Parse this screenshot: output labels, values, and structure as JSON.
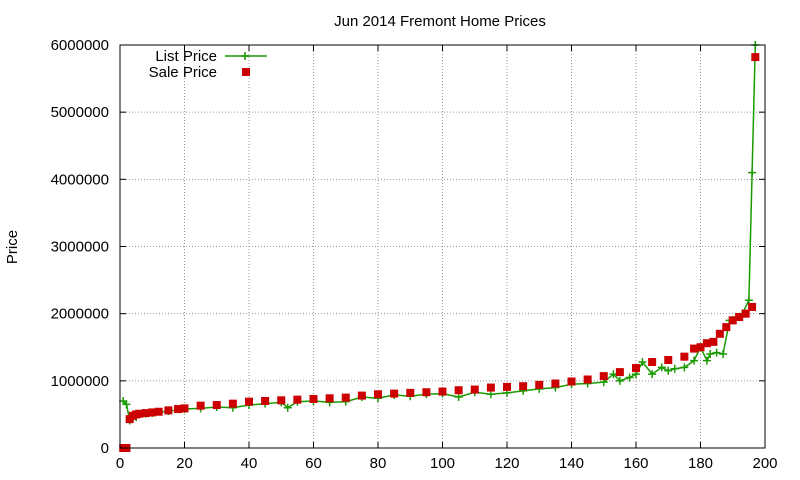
{
  "chart_data": {
    "type": "scatter",
    "title": "Jun 2014 Fremont Home Prices",
    "xlabel": "",
    "ylabel": "Price",
    "xlim": [
      0,
      200
    ],
    "ylim": [
      0,
      6000000
    ],
    "xticks": [
      0,
      20,
      40,
      60,
      80,
      100,
      120,
      140,
      160,
      180,
      200
    ],
    "yticks": [
      0,
      1000000,
      2000000,
      3000000,
      4000000,
      5000000,
      6000000
    ],
    "xtick_labels": [
      "0",
      "20",
      "40",
      "60",
      "80",
      "100",
      "120",
      "140",
      "160",
      "180",
      "200"
    ],
    "ytick_labels": [
      "0",
      "1000000",
      "2000000",
      "3000000",
      "4000000",
      "5000000",
      "6000000"
    ],
    "grid": true,
    "legend_position": "top-left",
    "series": [
      {
        "name": "List Price",
        "style": "lines+crosses",
        "color": "#1a9a00",
        "x": [
          1,
          2,
          3,
          5,
          8,
          10,
          15,
          20,
          25,
          30,
          35,
          40,
          45,
          50,
          52,
          55,
          60,
          65,
          70,
          75,
          80,
          85,
          90,
          95,
          100,
          105,
          110,
          115,
          120,
          125,
          130,
          135,
          140,
          145,
          150,
          153,
          155,
          158,
          160,
          162,
          165,
          168,
          170,
          172,
          175,
          178,
          180,
          182,
          183,
          185,
          187,
          189,
          191,
          193,
          195,
          196,
          197
        ],
        "values": [
          700000,
          650000,
          410000,
          460000,
          510000,
          520000,
          550000,
          580000,
          590000,
          610000,
          600000,
          640000,
          660000,
          680000,
          600000,
          690000,
          700000,
          680000,
          690000,
          760000,
          740000,
          790000,
          770000,
          800000,
          810000,
          760000,
          830000,
          800000,
          820000,
          850000,
          880000,
          900000,
          950000,
          960000,
          980000,
          1100000,
          1000000,
          1050000,
          1100000,
          1280000,
          1100000,
          1200000,
          1150000,
          1180000,
          1200000,
          1300000,
          1500000,
          1300000,
          1400000,
          1420000,
          1400000,
          1900000,
          1950000,
          2000000,
          2200000,
          4100000,
          6000000
        ]
      },
      {
        "name": "Sale Price",
        "style": "points-squares",
        "color": "#cc0000",
        "x": [
          1,
          2,
          3,
          4,
          5,
          6,
          8,
          10,
          12,
          15,
          18,
          20,
          25,
          30,
          35,
          40,
          45,
          50,
          55,
          60,
          65,
          70,
          75,
          80,
          85,
          90,
          95,
          100,
          105,
          110,
          115,
          120,
          125,
          130,
          135,
          140,
          145,
          150,
          155,
          160,
          165,
          170,
          175,
          178,
          180,
          182,
          184,
          186,
          188,
          190,
          192,
          194,
          196,
          197
        ],
        "values": [
          0,
          0,
          430000,
          480000,
          500000,
          510000,
          520000,
          530000,
          540000,
          560000,
          580000,
          590000,
          630000,
          640000,
          660000,
          690000,
          700000,
          710000,
          720000,
          730000,
          740000,
          750000,
          780000,
          800000,
          810000,
          820000,
          830000,
          840000,
          860000,
          870000,
          900000,
          910000,
          920000,
          940000,
          960000,
          990000,
          1020000,
          1070000,
          1130000,
          1190000,
          1280000,
          1310000,
          1360000,
          1480000,
          1500000,
          1560000,
          1580000,
          1700000,
          1800000,
          1900000,
          1950000,
          2000000,
          2100000,
          5820000
        ]
      }
    ]
  }
}
